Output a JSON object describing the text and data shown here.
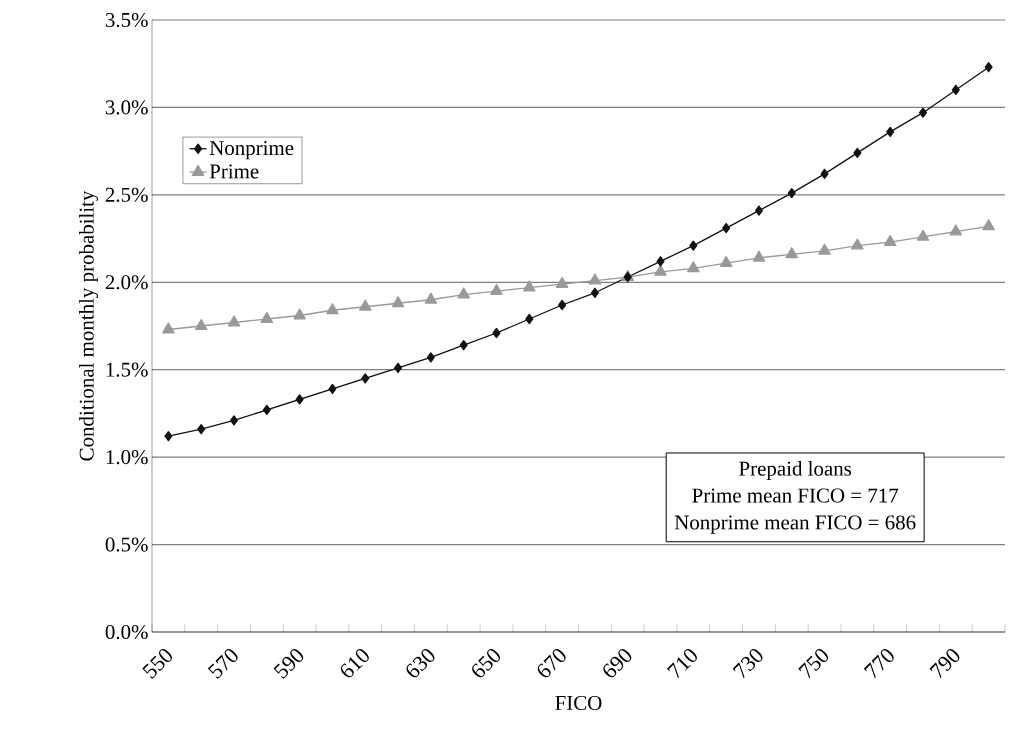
{
  "chart_data": {
    "type": "line",
    "xlabel": "FICO",
    "ylabel": "Conditional monthly probability",
    "categories": [
      "550",
      null,
      "570",
      null,
      "590",
      null,
      "610",
      null,
      "630",
      null,
      "650",
      null,
      "670",
      null,
      "690",
      null,
      "710",
      null,
      "730",
      null,
      "750",
      null,
      "770",
      null,
      "790",
      null
    ],
    "series": [
      {
        "name": "Nonprime",
        "color": "#111111",
        "marker": "diamond",
        "values": [
          1.12,
          1.16,
          1.21,
          1.27,
          1.33,
          1.39,
          1.45,
          1.51,
          1.57,
          1.64,
          1.71,
          1.79,
          1.87,
          1.94,
          2.03,
          2.12,
          2.21,
          2.31,
          2.41,
          2.51,
          2.62,
          2.74,
          2.86,
          2.97,
          3.1,
          3.23
        ]
      },
      {
        "name": "Prime",
        "color": "#999999",
        "marker": "triangle",
        "values": [
          1.73,
          1.75,
          1.77,
          1.79,
          1.81,
          1.84,
          1.86,
          1.88,
          1.9,
          1.93,
          1.95,
          1.97,
          1.99,
          2.01,
          2.03,
          2.06,
          2.08,
          2.11,
          2.14,
          2.16,
          2.18,
          2.21,
          2.23,
          2.26,
          2.29,
          2.32
        ]
      }
    ],
    "ylim": [
      0,
      3.5
    ],
    "yticks": [
      {
        "value": 0,
        "label": "0.0%"
      },
      {
        "value": 0.5,
        "label": "0.5%"
      },
      {
        "value": 1,
        "label": "1.0%"
      },
      {
        "value": 1.5,
        "label": "1.5%"
      },
      {
        "value": 2,
        "label": "2.0%"
      },
      {
        "value": 2.5,
        "label": "2.5%"
      },
      {
        "value": 3,
        "label": "3.0%"
      },
      {
        "value": 3.5,
        "label": "3.5%"
      }
    ],
    "grid": "y",
    "legend": "top left",
    "annotations": [
      "Prepaid loans",
      "Prime mean FICO = 717",
      "Nonprime mean FICO = 686"
    ]
  }
}
